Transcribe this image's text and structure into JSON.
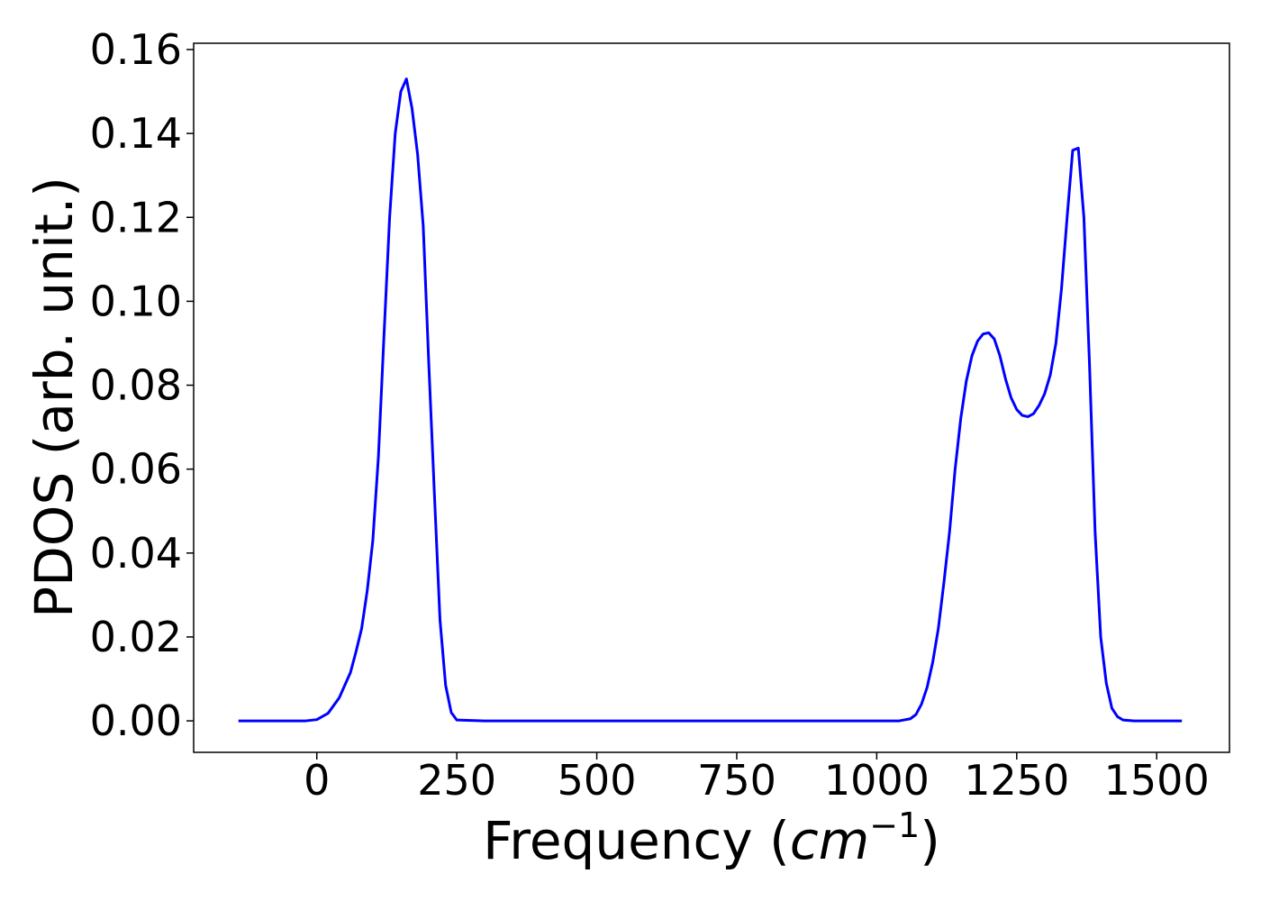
{
  "chart_data": {
    "type": "line",
    "title": "",
    "xlabel": "Frequency (",
    "xlabel_unit": "cm",
    "xlabel_exponent": "−1",
    "xlabel_close": ")",
    "ylabel": "PDOS (arb. unit.)",
    "xlim": [
      -220,
      1630
    ],
    "ylim": [
      -0.0075,
      0.1615
    ],
    "xticks": [
      0,
      250,
      500,
      750,
      1000,
      1250,
      1500
    ],
    "xtick_labels": [
      "0",
      "250",
      "500",
      "750",
      "1000",
      "1250",
      "1500"
    ],
    "yticks": [
      0.0,
      0.02,
      0.04,
      0.06,
      0.08,
      0.1,
      0.12,
      0.14,
      0.16
    ],
    "ytick_labels": [
      "0.00",
      "0.02",
      "0.04",
      "0.06",
      "0.08",
      "0.10",
      "0.12",
      "0.14",
      "0.16"
    ],
    "grid": false,
    "series": [
      {
        "color": "#0000ff",
        "x": [
          -140,
          -100,
          -60,
          -20,
          0,
          20,
          40,
          60,
          70,
          80,
          90,
          100,
          110,
          120,
          130,
          140,
          150,
          160,
          170,
          180,
          190,
          200,
          210,
          220,
          230,
          240,
          250,
          300,
          400,
          500,
          600,
          700,
          800,
          900,
          1000,
          1040,
          1060,
          1070,
          1080,
          1090,
          1100,
          1110,
          1120,
          1130,
          1140,
          1150,
          1160,
          1170,
          1180,
          1190,
          1200,
          1210,
          1220,
          1230,
          1240,
          1250,
          1260,
          1270,
          1280,
          1290,
          1300,
          1310,
          1320,
          1330,
          1340,
          1350,
          1360,
          1370,
          1380,
          1390,
          1400,
          1410,
          1420,
          1430,
          1440,
          1460,
          1500,
          1545
        ],
        "y": [
          0.0,
          0.0,
          0.0,
          0.0,
          0.0003,
          0.0018,
          0.0055,
          0.0115,
          0.0165,
          0.022,
          0.031,
          0.043,
          0.063,
          0.092,
          0.12,
          0.14,
          0.15,
          0.153,
          0.146,
          0.135,
          0.118,
          0.085,
          0.054,
          0.024,
          0.0085,
          0.002,
          0.0002,
          0.0,
          0.0,
          0.0,
          0.0,
          0.0,
          0.0,
          0.0,
          0.0,
          0.0,
          0.0005,
          0.0015,
          0.004,
          0.008,
          0.014,
          0.022,
          0.033,
          0.045,
          0.06,
          0.072,
          0.081,
          0.087,
          0.0905,
          0.0922,
          0.0925,
          0.091,
          0.087,
          0.0815,
          0.077,
          0.0742,
          0.0728,
          0.0725,
          0.0732,
          0.0752,
          0.078,
          0.0825,
          0.09,
          0.103,
          0.12,
          0.136,
          0.1365,
          0.12,
          0.085,
          0.045,
          0.02,
          0.009,
          0.003,
          0.001,
          0.0002,
          0.0,
          0.0,
          0.0
        ]
      }
    ]
  }
}
